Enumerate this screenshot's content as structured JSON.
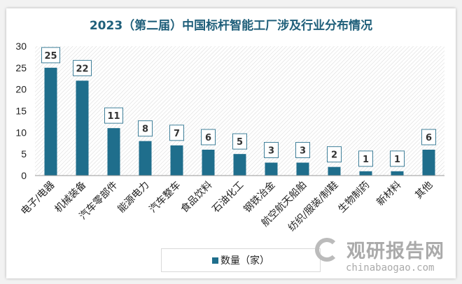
{
  "chart_data": {
    "type": "bar",
    "title": "2023（第二届）中国标杆智能工厂涉及行业分布情况",
    "categories": [
      "电子/电器",
      "机械装备",
      "汽车零部件",
      "能源电力",
      "汽车整车",
      "食品饮料",
      "石油化工",
      "钢铁冶金",
      "航空航天船舶",
      "纺织/服装/制鞋",
      "生物制药",
      "新材料",
      "其他"
    ],
    "series": [
      {
        "name": "数量（家）",
        "values": [
          25,
          22,
          11,
          8,
          7,
          6,
          5,
          3,
          3,
          2,
          1,
          1,
          6
        ],
        "color": "#1f6e8c"
      }
    ],
    "ylim": [
      0,
      30
    ],
    "yticks": [
      0,
      5,
      10,
      15,
      20,
      25,
      30
    ],
    "grid": false,
    "legend": "bottom",
    "data_labels": true
  },
  "watermark": {
    "cn": "观研报告网",
    "en": "chinabaogao.com"
  }
}
